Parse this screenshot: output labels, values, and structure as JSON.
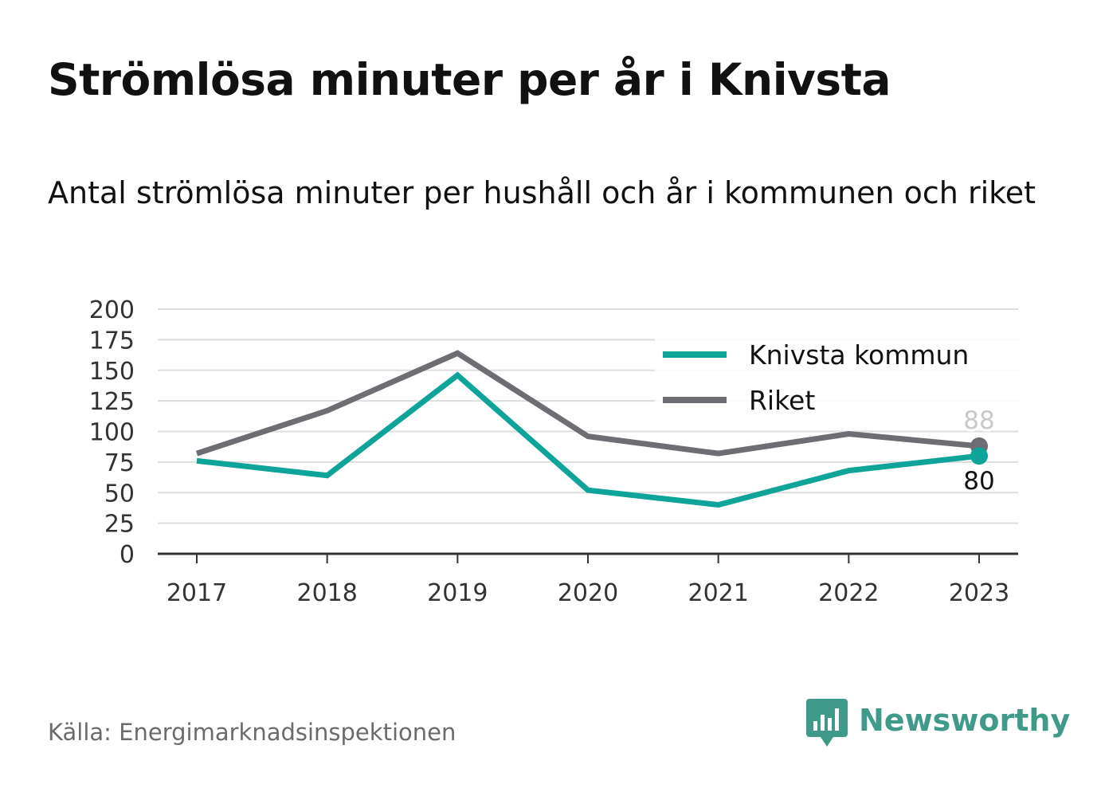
{
  "title": "Strömlösa minuter per år i Knivsta",
  "subtitle": "Antal strömlösa minuter per hushåll och år i kommunen och riket",
  "source": "Källa: Energimarknadsinspektionen",
  "brand": {
    "name": "Newsworthy",
    "icon": "newsworthy-logo-icon",
    "color": "#3f9a89"
  },
  "chart_data": {
    "type": "line",
    "x": [
      "2017",
      "2018",
      "2019",
      "2020",
      "2021",
      "2022",
      "2023"
    ],
    "ylim": [
      0,
      200
    ],
    "yticks": [
      0,
      25,
      50,
      75,
      100,
      125,
      150,
      175,
      200
    ],
    "grid": true,
    "legend_position": "top-right",
    "series": [
      {
        "name": "Knivsta kommun",
        "color": "#0ea49a",
        "values": [
          76,
          64,
          146,
          52,
          40,
          68,
          80
        ],
        "end_label": "80"
      },
      {
        "name": "Riket",
        "color": "#6e6d73",
        "values": [
          82,
          117,
          164,
          96,
          82,
          98,
          88
        ],
        "end_label": "88"
      }
    ]
  }
}
